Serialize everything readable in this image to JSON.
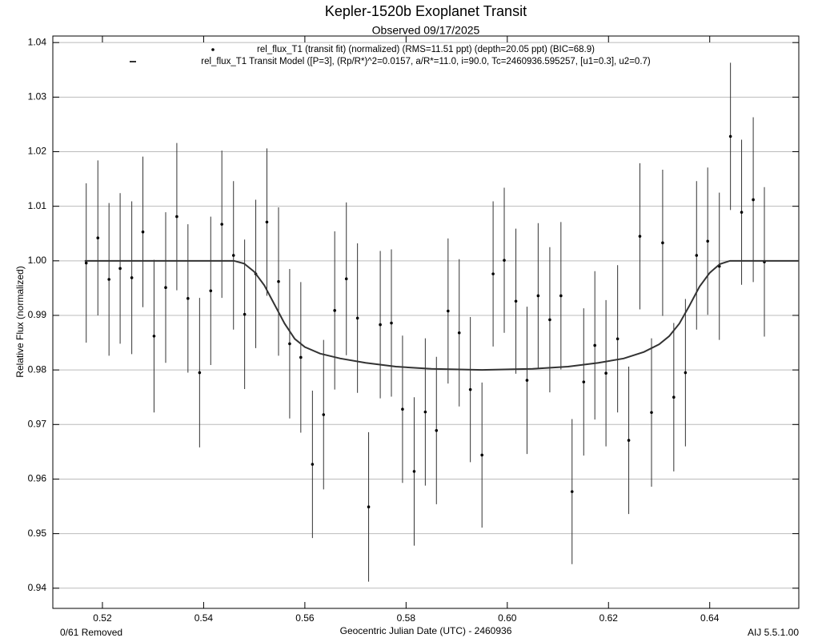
{
  "chart_data": {
    "type": "scatter",
    "title": "Kepler-1520b Exoplanet Transit",
    "subtitle": "Observed 09/17/2025",
    "x_label": "Geocentric Julian Date (UTC) - 2460936",
    "y_label": "Relative Flux (normalized)",
    "annotations": [
      "0/61 Removed",
      "AIJ 5.5.1.00"
    ],
    "xlim": [
      0.5102,
      0.6576
    ],
    "ylim": [
      0.9363,
      1.0412
    ],
    "xticks": [
      0.52,
      0.54,
      0.56,
      0.58,
      {
        "value": 0.6,
        "label": "0.60"
      },
      0.62,
      0.64
    ],
    "yticks": [
      0.94,
      0.95,
      0.96,
      0.97,
      0.98,
      0.99,
      {
        "value": 1,
        "label": "1.00"
      },
      1.01,
      1.02,
      1.03,
      1.04
    ],
    "grid": true,
    "series": [
      {
        "name": "rel_flux_T1 (transit fit) (normalized) (RMS=11.51 ppt) (depth=20.05 ppt) (BIC=68.9)",
        "type": "scatter",
        "color": "#000000",
        "x": [
          0.5168,
          0.5191,
          0.5213,
          0.5235,
          0.5258,
          0.528,
          0.5302,
          0.5325,
          0.5347,
          0.5369,
          0.5392,
          0.5414,
          0.5436,
          0.5459,
          0.5481,
          0.5503,
          0.5525,
          0.5548,
          0.557,
          0.5592,
          0.5615,
          0.5637,
          0.5659,
          0.5682,
          0.5704,
          0.5726,
          0.5749,
          0.5771,
          0.5793,
          0.5816,
          0.5838,
          0.586,
          0.5883,
          0.5905,
          0.5927,
          0.595,
          0.5972,
          0.5994,
          0.6017,
          0.6039,
          0.6061,
          0.6084,
          0.6106,
          0.6128,
          0.6151,
          0.6173,
          0.6195,
          0.6218,
          0.624,
          0.6262,
          0.6285,
          0.6307,
          0.6329,
          0.6352,
          0.6374,
          0.6396,
          0.6419,
          0.6441,
          0.6463,
          0.6486,
          0.6508
        ],
        "values": [
          0.9996,
          1.0042,
          0.9966,
          0.9986,
          0.9969,
          1.0053,
          0.9862,
          0.9951,
          1.0081,
          0.9931,
          0.9795,
          0.9945,
          1.0067,
          1.001,
          0.9902,
          0.9976,
          1.0071,
          0.9962,
          0.9848,
          0.9823,
          0.9627,
          0.9718,
          0.9909,
          0.9967,
          0.9895,
          0.9549,
          0.9883,
          0.9886,
          0.9728,
          0.9614,
          0.9723,
          0.9689,
          0.9908,
          0.9868,
          0.9764,
          0.9644,
          0.9976,
          1.0001,
          0.9926,
          0.9781,
          0.9936,
          0.9892,
          0.9936,
          0.9577,
          0.9778,
          0.9845,
          0.9794,
          0.9857,
          0.9671,
          1.0045,
          0.9722,
          1.0033,
          0.975,
          0.9795,
          1.001,
          1.0036,
          0.999,
          1.0228,
          1.0089,
          1.0112,
          0.9998
        ],
        "errors": [
          0.0146,
          0.0142,
          0.014,
          0.0138,
          0.014,
          0.0138,
          0.014,
          0.0138,
          0.0135,
          0.0136,
          0.0137,
          0.0136,
          0.0135,
          0.0136,
          0.0137,
          0.0136,
          0.0135,
          0.0136,
          0.0137,
          0.0138,
          0.0135,
          0.0137,
          0.0145,
          0.014,
          0.0137,
          0.0137,
          0.0135,
          0.0135,
          0.0135,
          0.0136,
          0.0135,
          0.0135,
          0.0133,
          0.0135,
          0.0133,
          0.0133,
          0.0133,
          0.0133,
          0.0133,
          0.0135,
          0.0133,
          0.0133,
          0.0135,
          0.0133,
          0.0135,
          0.0136,
          0.0134,
          0.0135,
          0.0135,
          0.0134,
          0.0136,
          0.0134,
          0.0136,
          0.0135,
          0.0136,
          0.0135,
          0.0135,
          0.0135,
          0.0133,
          0.0151,
          0.0137
        ]
      },
      {
        "name": "rel_flux_T1 Transit Model ([P=3], (Rp/R*)^2=0.0157, a/R*=11.0, i=90.0, Tc=2460936.595257, [u1=0.3], u2=0.7)",
        "type": "line",
        "color": "#333333",
        "x": [
          0.5165,
          0.546,
          0.548,
          0.55,
          0.552,
          0.554,
          0.556,
          0.558,
          0.56,
          0.563,
          0.567,
          0.572,
          0.578,
          0.585,
          0.595,
          0.605,
          0.612,
          0.618,
          0.623,
          0.627,
          0.63,
          0.632,
          0.634,
          0.636,
          0.638,
          0.64,
          0.642,
          0.644,
          0.6576
        ],
        "values": [
          1.0,
          1.0,
          0.9995,
          0.998,
          0.9955,
          0.992,
          0.9885,
          0.9857,
          0.9842,
          0.983,
          0.9821,
          0.9813,
          0.9806,
          0.9802,
          0.98,
          0.9802,
          0.9806,
          0.9813,
          0.9821,
          0.9833,
          0.9847,
          0.9862,
          0.9885,
          0.9918,
          0.9953,
          0.9978,
          0.9994,
          1.0,
          1.0
        ]
      }
    ]
  }
}
